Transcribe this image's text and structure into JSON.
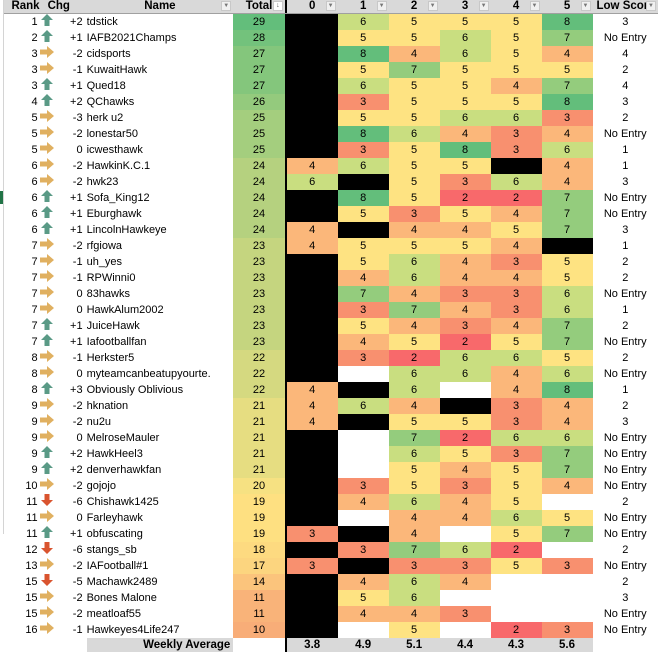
{
  "headers": {
    "rank": "Rank",
    "chg": "Chg",
    "name": "Name",
    "total": "Total",
    "weeks": [
      "0",
      "1",
      "2",
      "3",
      "4",
      "5"
    ],
    "low": "Low Scor"
  },
  "colors": {
    "s2": "#f8696b",
    "s3": "#f8906f",
    "s4": "#fbb77a",
    "s5": "#fee382",
    "s6": "#c9de80",
    "s7": "#94cc7d",
    "s8": "#63be7b",
    "arrow_up": "#5a9a86",
    "arrow_side": "#e0b060",
    "arrow_down": "#d9542f"
  },
  "rows": [
    {
      "rank": "1",
      "dir": "up",
      "chg": "+2",
      "name": "tdstick",
      "total": "29",
      "weeks": [
        "X",
        "6",
        "5",
        "5",
        "5",
        "8"
      ],
      "low": "3"
    },
    {
      "rank": "2",
      "dir": "up",
      "chg": "+1",
      "name": "IAFB2021Champs",
      "total": "28",
      "weeks": [
        "X",
        "5",
        "5",
        "6",
        "5",
        "7"
      ],
      "low": "No Entry"
    },
    {
      "rank": "3",
      "dir": "side",
      "chg": "-2",
      "name": "cidsports",
      "total": "27",
      "weeks": [
        "X",
        "8",
        "4",
        "6",
        "5",
        "4"
      ],
      "low": "4"
    },
    {
      "rank": "3",
      "dir": "side",
      "chg": "-1",
      "name": "KuwaitHawk",
      "total": "27",
      "weeks": [
        "X",
        "5",
        "7",
        "5",
        "5",
        "5"
      ],
      "low": "2"
    },
    {
      "rank": "3",
      "dir": "up",
      "chg": "+1",
      "name": "Qued18",
      "total": "27",
      "weeks": [
        "X",
        "6",
        "5",
        "5",
        "4",
        "7"
      ],
      "low": "4"
    },
    {
      "rank": "4",
      "dir": "up",
      "chg": "+2",
      "name": "QChawks",
      "total": "26",
      "weeks": [
        "X",
        "3",
        "5",
        "5",
        "5",
        "8"
      ],
      "low": "3"
    },
    {
      "rank": "5",
      "dir": "side",
      "chg": "-3",
      "name": "herk u2",
      "total": "25",
      "weeks": [
        "X",
        "5",
        "5",
        "6",
        "6",
        "3"
      ],
      "low": "2"
    },
    {
      "rank": "5",
      "dir": "side",
      "chg": "-2",
      "name": "lonestar50",
      "total": "25",
      "weeks": [
        "X",
        "8",
        "6",
        "4",
        "3",
        "4"
      ],
      "low": "No Entry"
    },
    {
      "rank": "5",
      "dir": "side",
      "chg": "0",
      "name": "icwesthawk",
      "total": "25",
      "weeks": [
        "X",
        "3",
        "5",
        "8",
        "3",
        "6"
      ],
      "low": "1"
    },
    {
      "rank": "6",
      "dir": "side",
      "chg": "-2",
      "name": "HawkinK.C.1",
      "total": "24",
      "weeks": [
        "4",
        "6",
        "5",
        "5",
        "X",
        "4"
      ],
      "low": "1"
    },
    {
      "rank": "6",
      "dir": "side",
      "chg": "-2",
      "name": "hwk23",
      "total": "24",
      "weeks": [
        "6",
        "X",
        "5",
        "3",
        "6",
        "4"
      ],
      "low": "3"
    },
    {
      "rank": "6",
      "dir": "up",
      "chg": "+1",
      "name": "Sofa_King12",
      "total": "24",
      "weeks": [
        "X",
        "8",
        "5",
        "2",
        "2",
        "7"
      ],
      "low": "No Entry"
    },
    {
      "rank": "6",
      "dir": "up",
      "chg": "+1",
      "name": "Eburghawk",
      "total": "24",
      "weeks": [
        "X",
        "5",
        "3",
        "5",
        "4",
        "7"
      ],
      "low": "No Entry"
    },
    {
      "rank": "6",
      "dir": "up",
      "chg": "+1",
      "name": "LincolnHawkeye",
      "total": "24",
      "weeks": [
        "4",
        "X",
        "4",
        "4",
        "5",
        "7"
      ],
      "low": "3"
    },
    {
      "rank": "7",
      "dir": "side",
      "chg": "-2",
      "name": "rfgiowa",
      "total": "23",
      "weeks": [
        "4",
        "5",
        "5",
        "5",
        "4",
        "X"
      ],
      "low": "1"
    },
    {
      "rank": "7",
      "dir": "side",
      "chg": "-1",
      "name": "uh_yes",
      "total": "23",
      "weeks": [
        "X",
        "5",
        "6",
        "4",
        "3",
        "5"
      ],
      "low": "2"
    },
    {
      "rank": "7",
      "dir": "side",
      "chg": "-1",
      "name": "RPWinni0",
      "total": "23",
      "weeks": [
        "X",
        "4",
        "6",
        "4",
        "4",
        "5"
      ],
      "low": "2"
    },
    {
      "rank": "7",
      "dir": "side",
      "chg": "0",
      "name": "83hawks",
      "total": "23",
      "weeks": [
        "X",
        "7",
        "4",
        "3",
        "3",
        "6"
      ],
      "low": "No Entry"
    },
    {
      "rank": "7",
      "dir": "side",
      "chg": "0",
      "name": "HawkAlum2002",
      "total": "23",
      "weeks": [
        "X",
        "3",
        "7",
        "4",
        "3",
        "6"
      ],
      "low": "1"
    },
    {
      "rank": "7",
      "dir": "up",
      "chg": "+1",
      "name": "JuiceHawk",
      "total": "23",
      "weeks": [
        "X",
        "5",
        "4",
        "3",
        "4",
        "7"
      ],
      "low": "2"
    },
    {
      "rank": "7",
      "dir": "up",
      "chg": "+1",
      "name": "Iafootballfan",
      "total": "23",
      "weeks": [
        "X",
        "4",
        "5",
        "2",
        "5",
        "7"
      ],
      "low": "No Entry"
    },
    {
      "rank": "8",
      "dir": "side",
      "chg": "-1",
      "name": "Herkster5",
      "total": "22",
      "weeks": [
        "X",
        "3",
        "2",
        "6",
        "6",
        "5"
      ],
      "low": "2"
    },
    {
      "rank": "8",
      "dir": "side",
      "chg": "0",
      "name": "myteamcanbeatupyourte.",
      "total": "22",
      "weeks": [
        "X",
        "",
        "6",
        "6",
        "4",
        "6"
      ],
      "low": "No Entry"
    },
    {
      "rank": "8",
      "dir": "up",
      "chg": "+3",
      "name": "Obviously Oblivious",
      "total": "22",
      "weeks": [
        "4",
        "X",
        "6",
        "",
        "4",
        "8"
      ],
      "low": "1"
    },
    {
      "rank": "9",
      "dir": "side",
      "chg": "-2",
      "name": "hknation",
      "total": "21",
      "weeks": [
        "4",
        "6",
        "4",
        "X",
        "3",
        "4"
      ],
      "low": "2"
    },
    {
      "rank": "9",
      "dir": "side",
      "chg": "-2",
      "name": "nu2u",
      "total": "21",
      "weeks": [
        "4",
        "X",
        "5",
        "5",
        "3",
        "4"
      ],
      "low": "3"
    },
    {
      "rank": "9",
      "dir": "side",
      "chg": "0",
      "name": "MelroseMauler",
      "total": "21",
      "weeks": [
        "X",
        "",
        "7",
        "2",
        "6",
        "6"
      ],
      "low": "No Entry"
    },
    {
      "rank": "9",
      "dir": "up",
      "chg": "+2",
      "name": "HawkHeel3",
      "total": "21",
      "weeks": [
        "X",
        "",
        "6",
        "5",
        "3",
        "7"
      ],
      "low": "No Entry"
    },
    {
      "rank": "9",
      "dir": "up",
      "chg": "+2",
      "name": "denverhawkfan",
      "total": "21",
      "weeks": [
        "X",
        "",
        "5",
        "4",
        "5",
        "7"
      ],
      "low": "No Entry"
    },
    {
      "rank": "10",
      "dir": "side",
      "chg": "-2",
      "name": "gojojo",
      "total": "20",
      "weeks": [
        "X",
        "3",
        "5",
        "3",
        "5",
        "4"
      ],
      "low": "No Entry"
    },
    {
      "rank": "11",
      "dir": "down",
      "chg": "-6",
      "name": "Chishawk1425",
      "total": "19",
      "weeks": [
        "X",
        "4",
        "6",
        "4",
        "5",
        ""
      ],
      "low": "2"
    },
    {
      "rank": "11",
      "dir": "side",
      "chg": "0",
      "name": "Farleyhawk",
      "total": "19",
      "weeks": [
        "X",
        "",
        "4",
        "4",
        "6",
        "5"
      ],
      "low": "No Entry"
    },
    {
      "rank": "11",
      "dir": "up",
      "chg": "+1",
      "name": "obfuscating",
      "total": "19",
      "weeks": [
        "3",
        "X",
        "4",
        "",
        "5",
        "7"
      ],
      "low": "No Entry"
    },
    {
      "rank": "12",
      "dir": "down",
      "chg": "-6",
      "name": "stangs_sb",
      "total": "18",
      "weeks": [
        "X",
        "3",
        "7",
        "6",
        "2",
        ""
      ],
      "low": "2"
    },
    {
      "rank": "13",
      "dir": "side",
      "chg": "-2",
      "name": "IAFootball#1",
      "total": "17",
      "weeks": [
        "3",
        "X",
        "3",
        "3",
        "5",
        "3"
      ],
      "low": "No Entry"
    },
    {
      "rank": "15",
      "dir": "down",
      "chg": "-5",
      "name": "Machawk2489",
      "total": "14",
      "weeks": [
        "X",
        "4",
        "6",
        "4",
        "",
        ""
      ],
      "low": "2"
    },
    {
      "rank": "15",
      "dir": "side",
      "chg": "-2",
      "name": "Bones Malone",
      "total": "11",
      "weeks": [
        "X",
        "5",
        "6",
        "",
        "",
        ""
      ],
      "low": "3"
    },
    {
      "rank": "15",
      "dir": "side",
      "chg": "-2",
      "name": "meatloaf55",
      "total": "11",
      "weeks": [
        "X",
        "4",
        "4",
        "3",
        "",
        ""
      ],
      "low": "No Entry"
    },
    {
      "rank": "16",
      "dir": "side",
      "chg": "-1",
      "name": "Hawkeyes4Life247",
      "total": "10",
      "weeks": [
        "X",
        "",
        "5",
        "",
        "2",
        "3"
      ],
      "low": "No Entry"
    }
  ],
  "footer": {
    "label": "Weekly Average",
    "averages": [
      "3.8",
      "4.9",
      "5.1",
      "4.4",
      "4.3",
      "5.6"
    ]
  }
}
